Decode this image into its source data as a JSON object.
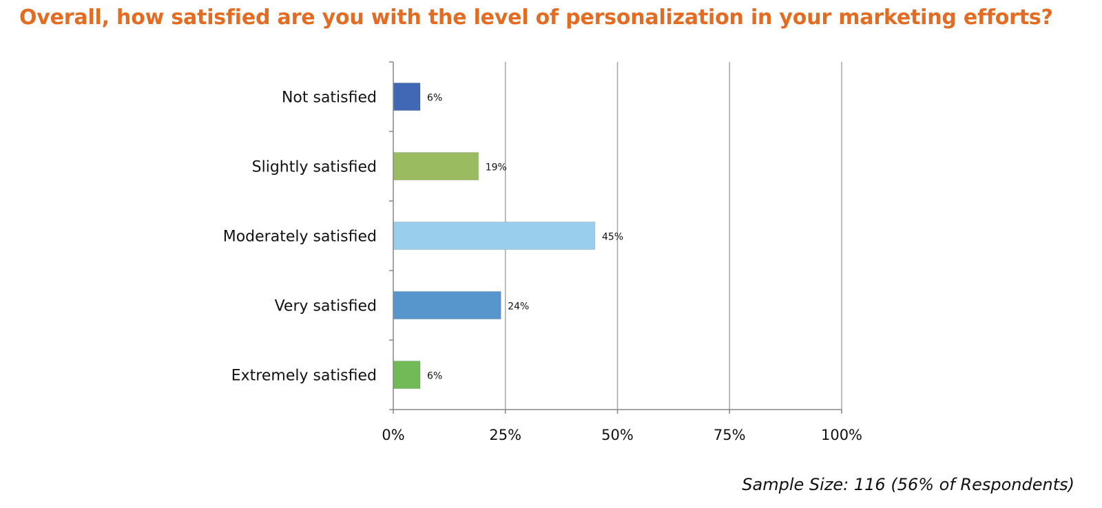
{
  "chart_data": {
    "type": "bar",
    "orientation": "horizontal",
    "title": "Overall, how satisfied are you with the level of personalization in your marketing efforts?",
    "categories": [
      "Not satisfied",
      "Slightly satisfied",
      "Moderately satisfied",
      "Very satisfied",
      "Extremely satisfied"
    ],
    "values": [
      6,
      19,
      45,
      24,
      6
    ],
    "data_labels": [
      "6%",
      "19%",
      "45%",
      "24%",
      "6%"
    ],
    "bar_colors": [
      "#4068b4",
      "#9bbb60",
      "#99cfec",
      "#5696cc",
      "#72b957"
    ],
    "xlim": [
      0,
      100
    ],
    "x_ticks": [
      0,
      25,
      50,
      75,
      100
    ],
    "x_tick_labels": [
      "0%",
      "25%",
      "50%",
      "75%",
      "100%"
    ],
    "grid": "vertical",
    "legend": "none",
    "footnote": "Sample Size: 116 (56% of Respondents)",
    "title_color": "#e46c22"
  }
}
